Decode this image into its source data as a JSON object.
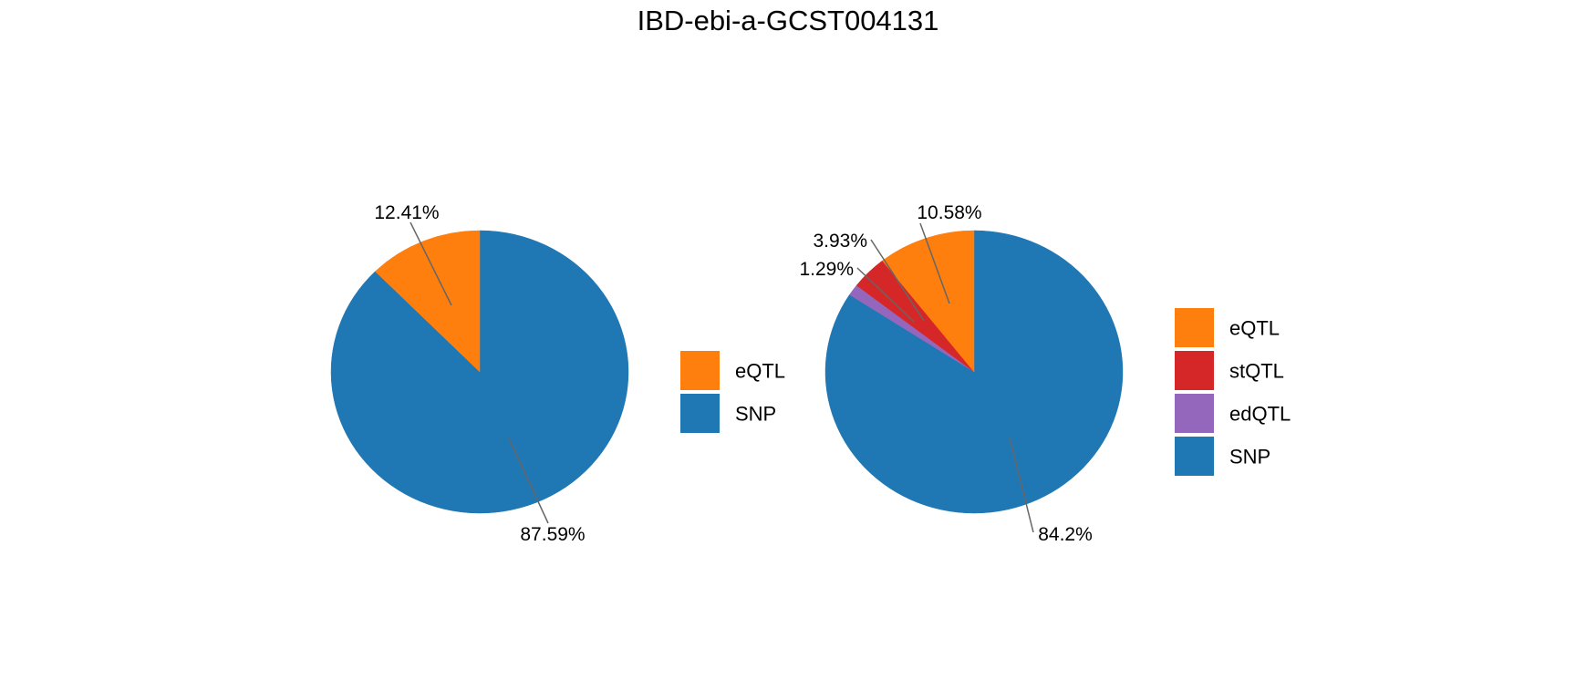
{
  "title": "IBD-ebi-a-GCST004131",
  "colors": {
    "eQTL": "#FF7F0E",
    "stQTL": "#D62728",
    "edQTL": "#9467BD",
    "SNP": "#1F77B4"
  },
  "chart_data": [
    {
      "type": "pie",
      "legend_position": "right",
      "slices": [
        {
          "name": "SNP",
          "value": 87.59,
          "label": "87.59%",
          "color": "#1F77B4"
        },
        {
          "name": "eQTL",
          "value": 12.41,
          "label": "12.41%",
          "color": "#FF7F0E"
        }
      ],
      "legend": [
        "eQTL",
        "SNP"
      ]
    },
    {
      "type": "pie",
      "legend_position": "right",
      "slices": [
        {
          "name": "SNP",
          "value": 84.2,
          "label": "84.2%",
          "color": "#1F77B4"
        },
        {
          "name": "edQTL",
          "value": 1.29,
          "label": "1.29%",
          "color": "#9467BD"
        },
        {
          "name": "stQTL",
          "value": 3.93,
          "label": "3.93%",
          "color": "#D62728"
        },
        {
          "name": "eQTL",
          "value": 10.58,
          "label": "10.58%",
          "color": "#FF7F0E"
        }
      ],
      "legend": [
        "eQTL",
        "stQTL",
        "edQTL",
        "SNP"
      ]
    }
  ]
}
